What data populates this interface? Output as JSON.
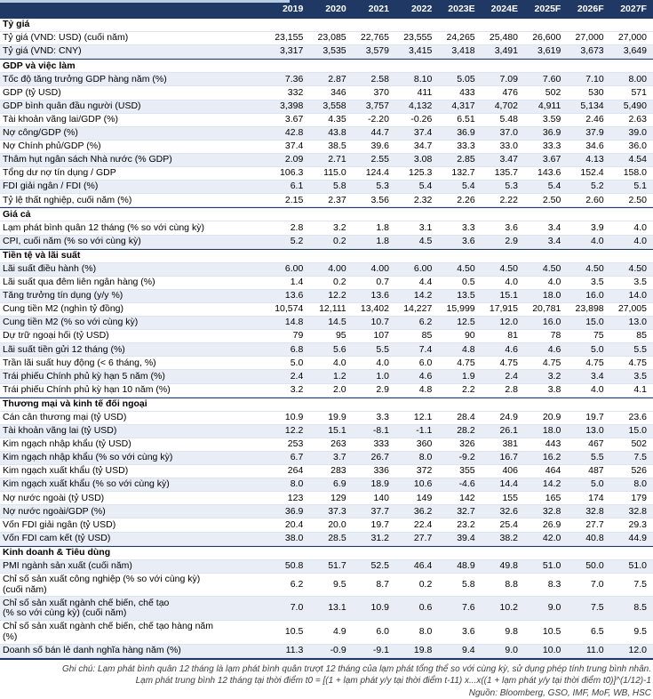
{
  "colors": {
    "header_bg": "#1f3864",
    "header_text": "#ffffff",
    "shaded_row_bg": "#e9edf6",
    "section_border": "#1f3864",
    "row_divider": "#dce4f2",
    "top_strip": "#b8cce4"
  },
  "table": {
    "columns": [
      "2019",
      "2020",
      "2021",
      "2022",
      "2023E",
      "2024E",
      "2025F",
      "2026F",
      "2027F"
    ],
    "rows": [
      {
        "type": "section",
        "label": "Tỷ giá"
      },
      {
        "type": "data",
        "shaded": false,
        "label": "Tỷ giá (VND: USD) (cuối năm)",
        "values": [
          "23,155",
          "23,085",
          "22,765",
          "23,555",
          "24,265",
          "25,480",
          "26,600",
          "27,000",
          "27,000"
        ]
      },
      {
        "type": "data",
        "shaded": true,
        "label": "Tỷ giá (VND: CNY)",
        "values": [
          "3,317",
          "3,535",
          "3,579",
          "3,415",
          "3,418",
          "3,491",
          "3,619",
          "3,673",
          "3,649"
        ]
      },
      {
        "type": "section",
        "label": "GDP và việc làm"
      },
      {
        "type": "data",
        "shaded": true,
        "label": "Tốc độ tăng trưởng GDP hàng năm (%)",
        "values": [
          "7.36",
          "2.87",
          "2.58",
          "8.10",
          "5.05",
          "7.09",
          "7.60",
          "7.10",
          "8.00"
        ]
      },
      {
        "type": "data",
        "shaded": false,
        "label": "GDP (tỷ USD)",
        "values": [
          "332",
          "346",
          "370",
          "411",
          "433",
          "476",
          "502",
          "530",
          "571"
        ]
      },
      {
        "type": "data",
        "shaded": true,
        "label": "GDP bình quân đầu người (USD)",
        "values": [
          "3,398",
          "3,558",
          "3,757",
          "4,132",
          "4,317",
          "4,702",
          "4,911",
          "5,134",
          "5,490"
        ]
      },
      {
        "type": "data",
        "shaded": false,
        "label": "Tài khoản vãng lai/GDP (%)",
        "values": [
          "3.67",
          "4.35",
          "-2.20",
          "-0.26",
          "6.51",
          "5.48",
          "3.59",
          "2.46",
          "2.63"
        ]
      },
      {
        "type": "data",
        "shaded": true,
        "label": "Nợ công/GDP (%)",
        "values": [
          "42.8",
          "43.8",
          "44.7",
          "37.4",
          "36.9",
          "37.0",
          "36.9",
          "37.9",
          "39.0"
        ]
      },
      {
        "type": "data",
        "shaded": false,
        "label": "Nợ Chính phủ/GDP (%)",
        "values": [
          "37.4",
          "38.5",
          "39.6",
          "34.7",
          "33.3",
          "33.0",
          "33.3",
          "34.6",
          "36.0"
        ]
      },
      {
        "type": "data",
        "shaded": true,
        "label": "Thâm hụt ngân sách Nhà nước (% GDP)",
        "values": [
          "2.09",
          "2.71",
          "2.55",
          "3.08",
          "2.85",
          "3.47",
          "3.67",
          "4.13",
          "4.54"
        ]
      },
      {
        "type": "data",
        "shaded": false,
        "label": "Tổng dư nợ tín dụng / GDP",
        "values": [
          "106.3",
          "115.0",
          "124.4",
          "125.3",
          "132.7",
          "135.7",
          "143.6",
          "152.4",
          "158.0"
        ]
      },
      {
        "type": "data",
        "shaded": true,
        "label": "FDI giải ngân / FDI (%)",
        "values": [
          "6.1",
          "5.8",
          "5.3",
          "5.4",
          "5.4",
          "5.3",
          "5.4",
          "5.2",
          "5.1"
        ]
      },
      {
        "type": "data",
        "shaded": false,
        "label": "Tỷ lệ thất nghiệp, cuối năm (%)",
        "values": [
          "2.15",
          "2.37",
          "3.56",
          "2.32",
          "2.26",
          "2.22",
          "2.50",
          "2.60",
          "2.50"
        ]
      },
      {
        "type": "section",
        "label": "Giá cả"
      },
      {
        "type": "data",
        "shaded": false,
        "label": "Lạm phát bình quân 12 tháng (% so với cùng kỳ)",
        "values": [
          "2.8",
          "3.2",
          "1.8",
          "3.1",
          "3.3",
          "3.6",
          "3.4",
          "3.9",
          "4.0"
        ]
      },
      {
        "type": "data",
        "shaded": true,
        "label": "CPI, cuối năm (% so với cùng kỳ)",
        "values": [
          "5.2",
          "0.2",
          "1.8",
          "4.5",
          "3.6",
          "2.9",
          "3.4",
          "4.0",
          "4.0"
        ]
      },
      {
        "type": "section",
        "label": "Tiền tệ và lãi suất"
      },
      {
        "type": "data",
        "shaded": true,
        "label": "Lãi suất điều hành (%)",
        "values": [
          "6.00",
          "4.00",
          "4.00",
          "6.00",
          "4.50",
          "4.50",
          "4.50",
          "4.50",
          "4.50"
        ]
      },
      {
        "type": "data",
        "shaded": false,
        "label": "Lãi suất qua đêm liên ngân hàng (%)",
        "values": [
          "1.4",
          "0.2",
          "0.7",
          "4.4",
          "0.5",
          "4.0",
          "4.0",
          "3.5",
          "3.5"
        ]
      },
      {
        "type": "data",
        "shaded": true,
        "label": "Tăng trưởng tín dụng (y/y %)",
        "values": [
          "13.6",
          "12.2",
          "13.6",
          "14.2",
          "13.5",
          "15.1",
          "18.0",
          "16.0",
          "14.0"
        ]
      },
      {
        "type": "data",
        "shaded": false,
        "label": "Cung tiền M2 (nghìn tỷ đồng)",
        "values": [
          "10,574",
          "12,111",
          "13,402",
          "14,227",
          "15,999",
          "17,915",
          "20,781",
          "23,898",
          "27,005"
        ]
      },
      {
        "type": "data",
        "shaded": true,
        "label": "Cung tiền M2 (% so với cùng kỳ)",
        "values": [
          "14.8",
          "14.5",
          "10.7",
          "6.2",
          "12.5",
          "12.0",
          "16.0",
          "15.0",
          "13.0"
        ]
      },
      {
        "type": "data",
        "shaded": false,
        "label": "Dự trữ ngoại hối (tỷ USD)",
        "values": [
          "79",
          "95",
          "107",
          "85",
          "90",
          "81",
          "78",
          "75",
          "85"
        ]
      },
      {
        "type": "data",
        "shaded": true,
        "label": "Lãi suất tiền gửi 12 tháng (%)",
        "values": [
          "6.8",
          "5.6",
          "5.5",
          "7.4",
          "4.8",
          "4.6",
          "4.6",
          "5.0",
          "5.5"
        ]
      },
      {
        "type": "data",
        "shaded": false,
        "label": "Trần lãi suất huy động (< 6 tháng, %)",
        "values": [
          "5.0",
          "4.0",
          "4.0",
          "6.0",
          "4.75",
          "4.75",
          "4.75",
          "4.75",
          "4.75"
        ]
      },
      {
        "type": "data",
        "shaded": true,
        "label": "Trái phiếu Chính phủ kỳ hạn 5 năm (%)",
        "values": [
          "2.4",
          "1.2",
          "1.0",
          "4.6",
          "1.9",
          "2.4",
          "3.2",
          "3.4",
          "3.5"
        ]
      },
      {
        "type": "data",
        "shaded": false,
        "label": "Trái phiếu Chính phủ kỳ hạn 10 năm (%)",
        "values": [
          "3.2",
          "2.0",
          "2.9",
          "4.8",
          "2.2",
          "2.8",
          "3.8",
          "4.0",
          "4.1"
        ]
      },
      {
        "type": "section",
        "label": "Thương mại và kinh tế đối ngoại"
      },
      {
        "type": "data",
        "shaded": false,
        "label": "Cán cân thương mại (tỷ USD)",
        "values": [
          "10.9",
          "19.9",
          "3.3",
          "12.1",
          "28.4",
          "24.9",
          "20.9",
          "19.7",
          "23.6"
        ]
      },
      {
        "type": "data",
        "shaded": true,
        "label": "Tài khoản vãng lai (tỷ USD)",
        "values": [
          "12.2",
          "15.1",
          "-8.1",
          "-1.1",
          "28.2",
          "26.1",
          "18.0",
          "13.0",
          "15.0"
        ]
      },
      {
        "type": "data",
        "shaded": false,
        "label": "Kim ngạch nhập khẩu (tỷ USD)",
        "values": [
          "253",
          "263",
          "333",
          "360",
          "326",
          "381",
          "443",
          "467",
          "502"
        ]
      },
      {
        "type": "data",
        "shaded": true,
        "label": "Kim ngạch nhập khẩu (% so với cùng kỳ)",
        "values": [
          "6.7",
          "3.7",
          "26.7",
          "8.0",
          "-9.2",
          "16.7",
          "16.2",
          "5.5",
          "7.5"
        ]
      },
      {
        "type": "data",
        "shaded": false,
        "label": "Kim ngạch xuất khẩu (tỷ USD)",
        "values": [
          "264",
          "283",
          "336",
          "372",
          "355",
          "406",
          "464",
          "487",
          "526"
        ]
      },
      {
        "type": "data",
        "shaded": true,
        "label": "Kim ngạch xuất khẩu (% so với cùng kỳ)",
        "values": [
          "8.0",
          "6.9",
          "18.9",
          "10.6",
          "-4.6",
          "14.4",
          "14.2",
          "5.0",
          "8.0"
        ]
      },
      {
        "type": "data",
        "shaded": false,
        "label": "Nợ nước ngoài (tỷ USD)",
        "values": [
          "123",
          "129",
          "140",
          "149",
          "142",
          "155",
          "165",
          "174",
          "179"
        ]
      },
      {
        "type": "data",
        "shaded": true,
        "label": "Nợ nước ngoài/GDP (%)",
        "values": [
          "36.9",
          "37.3",
          "37.7",
          "36.2",
          "32.7",
          "32.6",
          "32.8",
          "32.8",
          "32.8"
        ]
      },
      {
        "type": "data",
        "shaded": false,
        "label": "Vốn FDI giải ngân (tỷ USD)",
        "values": [
          "20.4",
          "20.0",
          "19.7",
          "22.4",
          "23.2",
          "25.4",
          "26.9",
          "27.7",
          "29.3"
        ]
      },
      {
        "type": "data",
        "shaded": true,
        "label": "Vốn FDI cam kết (tỷ USD)",
        "values": [
          "38.0",
          "28.5",
          "31.2",
          "27.7",
          "39.4",
          "38.2",
          "42.0",
          "40.8",
          "44.9"
        ]
      },
      {
        "type": "section",
        "label": "Kinh doanh & Tiêu dùng"
      },
      {
        "type": "data",
        "shaded": true,
        "label": "PMI ngành sản xuất (cuối năm)",
        "values": [
          "50.8",
          "51.7",
          "52.5",
          "46.4",
          "48.9",
          "49.8",
          "51.0",
          "50.0",
          "51.0"
        ]
      },
      {
        "type": "data",
        "shaded": false,
        "label": "Chỉ số sản xuất công nghiệp (% so với cùng kỳ)",
        "sublabel": "(cuối năm)",
        "values": [
          "6.2",
          "9.5",
          "8.7",
          "0.2",
          "5.8",
          "8.8",
          "8.3",
          "7.0",
          "7.5"
        ]
      },
      {
        "type": "data",
        "shaded": true,
        "label": "Chỉ số sản xuất ngành chế biến, chế tạo",
        "sublabel": "(% so với cùng kỳ) (cuối năm)",
        "values": [
          "7.0",
          "13.1",
          "10.9",
          "0.6",
          "7.6",
          "10.2",
          "9.0",
          "7.5",
          "8.5"
        ]
      },
      {
        "type": "data",
        "shaded": false,
        "label": "Chỉ số sản xuất ngành chế biến, chế tạo hàng năm",
        "sublabel": "(%)",
        "values": [
          "10.5",
          "4.9",
          "6.0",
          "8.0",
          "3.6",
          "9.8",
          "10.5",
          "6.5",
          "9.5"
        ]
      },
      {
        "type": "data",
        "shaded": true,
        "label": "Doanh số bán lẻ danh nghĩa hàng năm (%)",
        "values": [
          "11.3",
          "-0.9",
          "-9.1",
          "19.8",
          "9.4",
          "9.0",
          "10.0",
          "11.0",
          "12.0"
        ]
      }
    ]
  },
  "footer": {
    "note1": "Ghi chú: Lạm phát bình quân 12 tháng là lạm phát bình quân trượt 12 tháng của lạm phát tổng thể so với cùng kỳ, sử dụng phép tính trung bình nhân.",
    "note2": "Lạm phát trung bình 12 tháng tại thời điểm t0 = [(1 + lạm phát y/y tại thời điểm t-11) x...x((1 + lạm phát y/y tại thời điểm t0)]^(1/12)-1",
    "source": "Nguồn: Bloomberg, GSO, IMF, MoF, WB, HSC"
  }
}
